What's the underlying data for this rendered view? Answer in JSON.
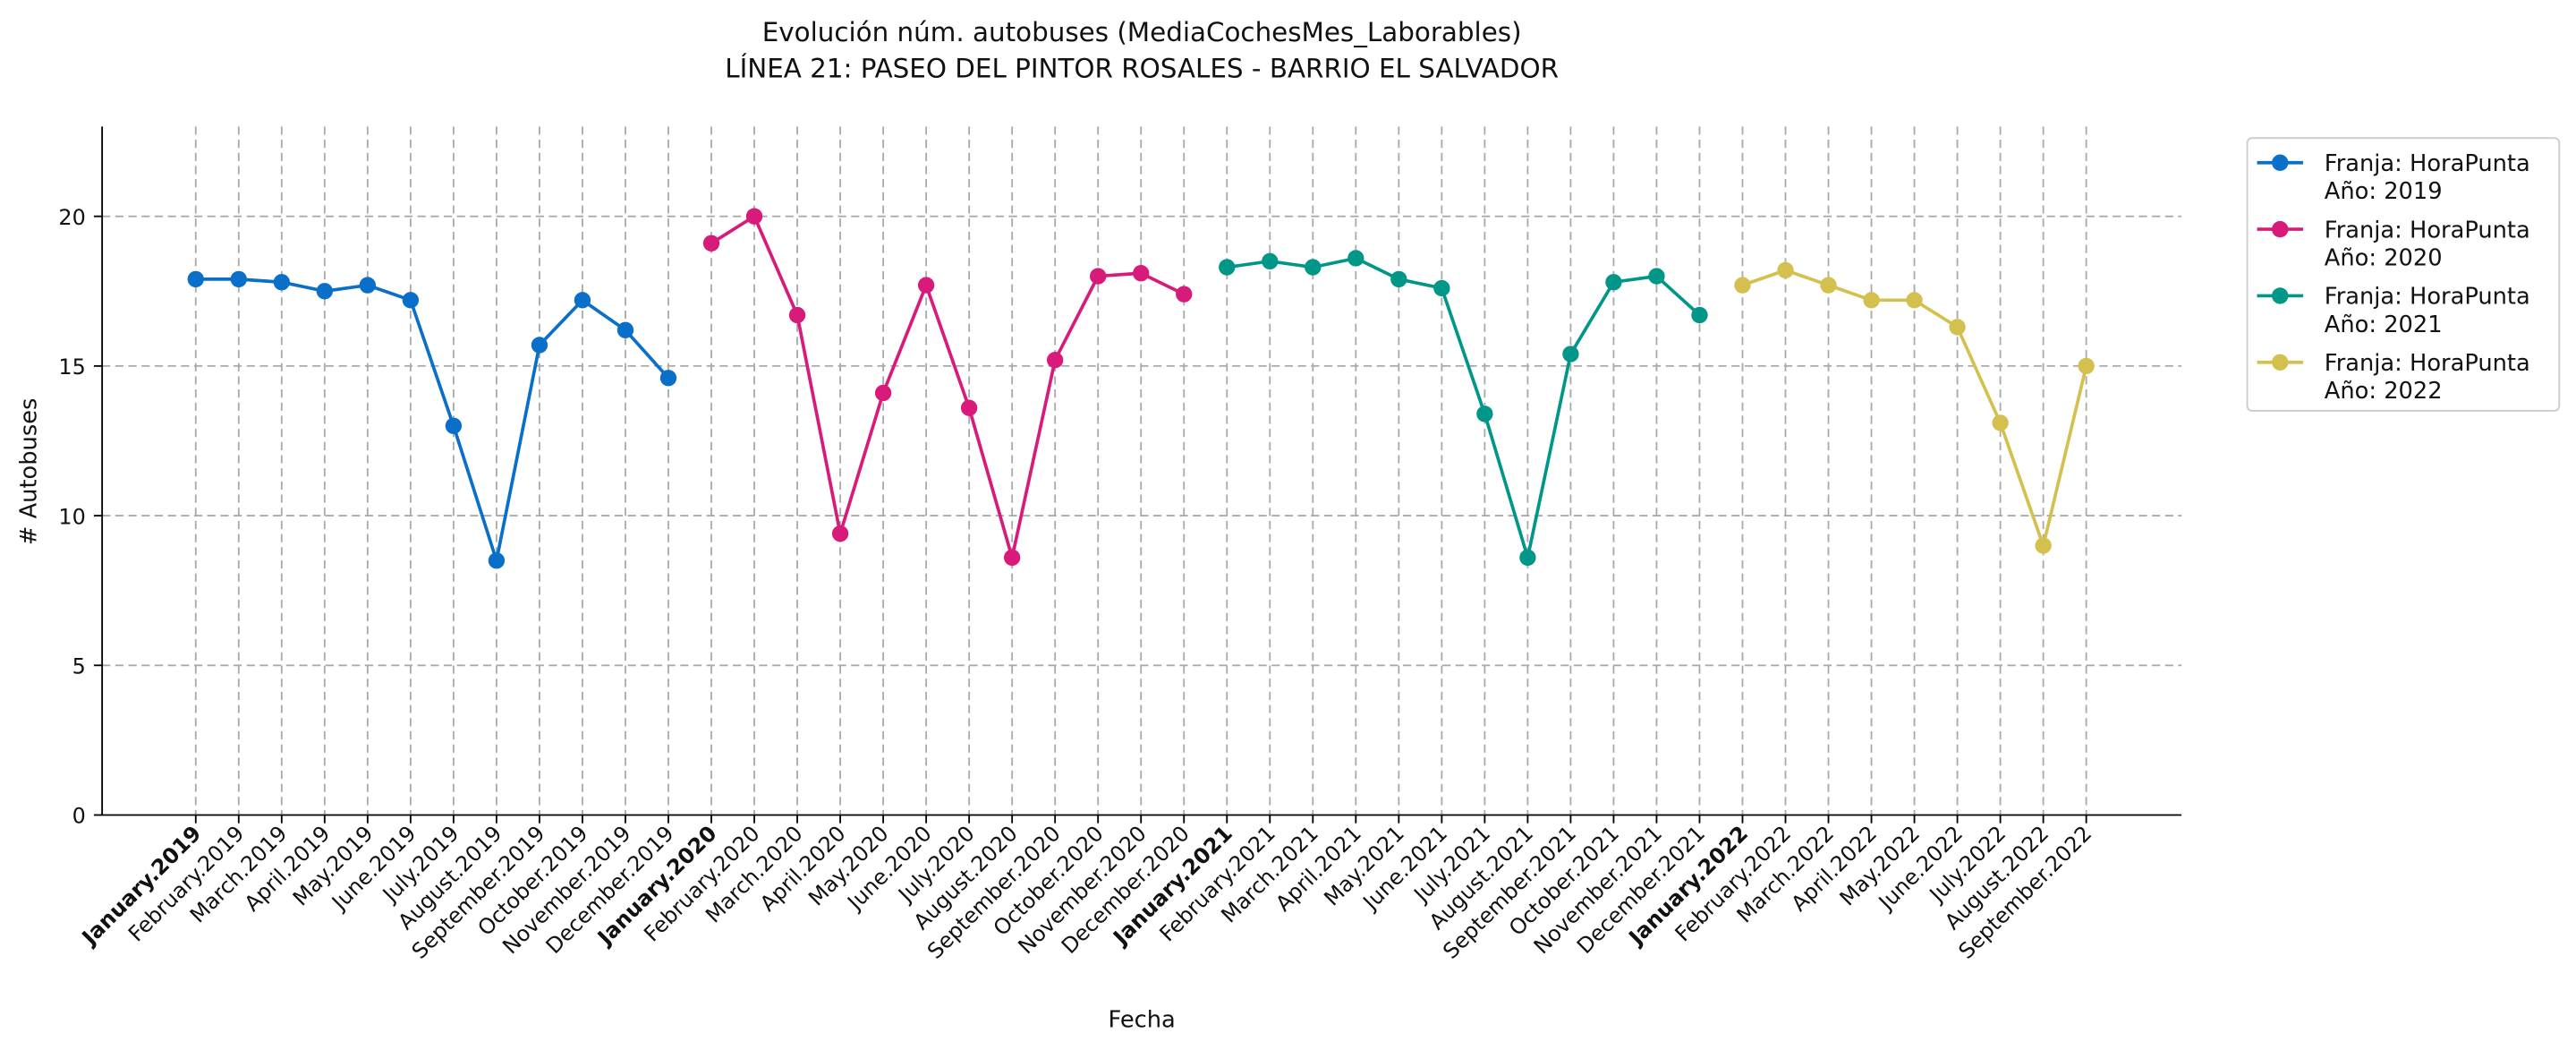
{
  "chart_data": {
    "type": "line",
    "title": "Evolución núm. autobuses (MediaCochesMes_Laborables)",
    "subtitle": "LÍNEA 21: PASEO DEL PINTOR ROSALES - BARRIO EL SALVADOR",
    "x_label": "Fecha",
    "y_label": "# Autobuses",
    "categories": [
      "January.2019",
      "February.2019",
      "March.2019",
      "April.2019",
      "May.2019",
      "June.2019",
      "July.2019",
      "August.2019",
      "September.2019",
      "October.2019",
      "November.2019",
      "December.2019",
      "January.2020",
      "February.2020",
      "March.2020",
      "April.2020",
      "May.2020",
      "June.2020",
      "July.2020",
      "August.2020",
      "September.2020",
      "October.2020",
      "November.2020",
      "December.2020",
      "January.2021",
      "February.2021",
      "March.2021",
      "April.2021",
      "May.2021",
      "June.2021",
      "July.2021",
      "August.2021",
      "September.2021",
      "October.2021",
      "November.2021",
      "December.2021",
      "January.2022",
      "February.2022",
      "March.2022",
      "April.2022",
      "May.2022",
      "June.2022",
      "July.2022",
      "August.2022",
      "September.2022"
    ],
    "series": [
      {
        "name": "Franja: HoraPunta\nAño: 2019",
        "color": "#0a6fc9",
        "values": [
          17.9,
          17.9,
          17.8,
          17.5,
          17.7,
          17.2,
          13.0,
          8.5,
          15.7,
          17.2,
          16.2,
          14.6,
          null,
          null,
          null,
          null,
          null,
          null,
          null,
          null,
          null,
          null,
          null,
          null,
          null,
          null,
          null,
          null,
          null,
          null,
          null,
          null,
          null,
          null,
          null,
          null,
          null,
          null,
          null,
          null,
          null,
          null,
          null,
          null,
          null
        ]
      },
      {
        "name": "Franja: HoraPunta\nAño: 2020",
        "color": "#d81b7a",
        "values": [
          null,
          null,
          null,
          null,
          null,
          null,
          null,
          null,
          null,
          null,
          null,
          null,
          19.1,
          20.0,
          16.7,
          9.4,
          14.1,
          17.7,
          13.6,
          8.6,
          15.2,
          18.0,
          18.1,
          17.4,
          null,
          null,
          null,
          null,
          null,
          null,
          null,
          null,
          null,
          null,
          null,
          null,
          null,
          null,
          null,
          null,
          null,
          null,
          null,
          null,
          null
        ]
      },
      {
        "name": "Franja: HoraPunta\nAño: 2021",
        "color": "#009688",
        "values": [
          null,
          null,
          null,
          null,
          null,
          null,
          null,
          null,
          null,
          null,
          null,
          null,
          null,
          null,
          null,
          null,
          null,
          null,
          null,
          null,
          null,
          null,
          null,
          null,
          18.3,
          18.5,
          18.3,
          18.6,
          17.9,
          17.6,
          13.4,
          8.6,
          15.4,
          17.8,
          18.0,
          16.7,
          null,
          null,
          null,
          null,
          null,
          null,
          null,
          null,
          null
        ]
      },
      {
        "name": "Franja: HoraPunta\nAño: 2022",
        "color": "#d4c04f",
        "values": [
          null,
          null,
          null,
          null,
          null,
          null,
          null,
          null,
          null,
          null,
          null,
          null,
          null,
          null,
          null,
          null,
          null,
          null,
          null,
          null,
          null,
          null,
          null,
          null,
          null,
          null,
          null,
          null,
          null,
          null,
          null,
          null,
          null,
          null,
          null,
          null,
          17.7,
          18.2,
          17.7,
          17.2,
          17.2,
          16.3,
          13.1,
          9.0,
          15.0
        ]
      }
    ],
    "ylim": [
      0,
      23
    ],
    "yticks": [
      0,
      5,
      10,
      15,
      20
    ],
    "grid": true,
    "legend": "outside right"
  }
}
